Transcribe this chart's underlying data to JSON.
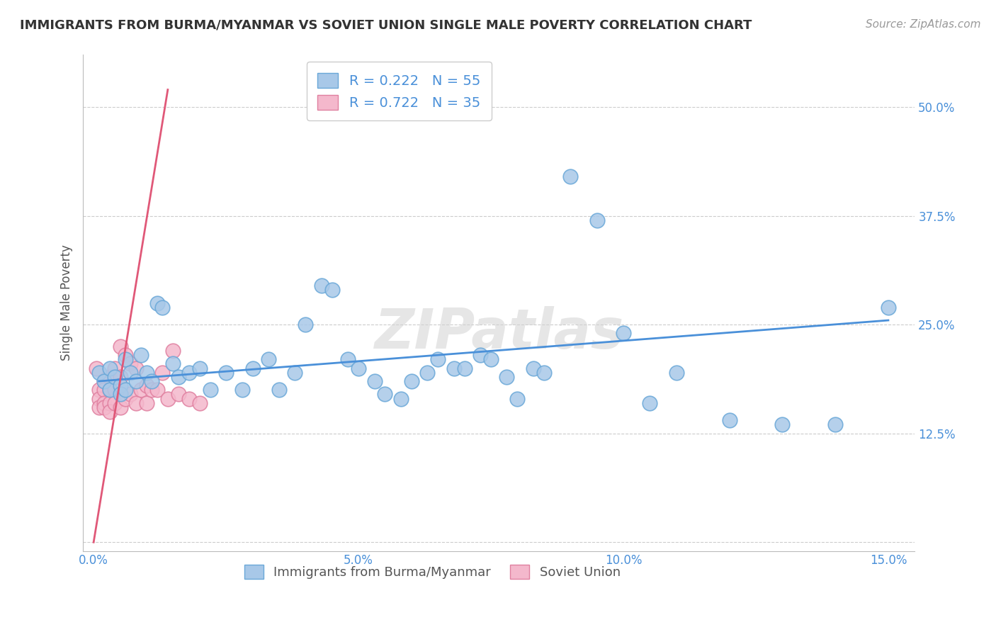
{
  "title": "IMMIGRANTS FROM BURMA/MYANMAR VS SOVIET UNION SINGLE MALE POVERTY CORRELATION CHART",
  "source": "Source: ZipAtlas.com",
  "ylabel": "Single Male Poverty",
  "xlim": [
    -0.002,
    0.155
  ],
  "ylim": [
    -0.01,
    0.56
  ],
  "xticks": [
    0.0,
    0.05,
    0.1,
    0.15
  ],
  "xtick_labels": [
    "0.0%",
    "5.0%",
    "10.0%",
    "15.0%"
  ],
  "yticks": [
    0.0,
    0.125,
    0.25,
    0.375,
    0.5
  ],
  "ytick_labels": [
    "",
    "12.5%",
    "25.0%",
    "37.5%",
    "50.0%"
  ],
  "legend1_label": "R = 0.222   N = 55",
  "legend2_label": "R = 0.722   N = 35",
  "dot1_color": "#a8c8e8",
  "dot2_color": "#f4b8cc",
  "dot1_edge": "#6aa8d8",
  "dot2_edge": "#e080a0",
  "line1_color": "#4a90d9",
  "line2_color": "#e05878",
  "watermark": "ZIPatlas",
  "background": "#ffffff",
  "grid_color": "#cccccc",
  "title_color": "#333333",
  "axis_label_color": "#555555",
  "tick_color": "#4a90d9",
  "R1": 0.222,
  "N1": 55,
  "R2": 0.722,
  "N2": 35,
  "burma_x": [
    0.001,
    0.002,
    0.003,
    0.003,
    0.004,
    0.005,
    0.005,
    0.006,
    0.006,
    0.007,
    0.008,
    0.009,
    0.01,
    0.011,
    0.012,
    0.013,
    0.015,
    0.016,
    0.018,
    0.02,
    0.022,
    0.025,
    0.028,
    0.03,
    0.033,
    0.035,
    0.038,
    0.04,
    0.043,
    0.045,
    0.048,
    0.05,
    0.053,
    0.055,
    0.058,
    0.06,
    0.063,
    0.065,
    0.068,
    0.07,
    0.073,
    0.075,
    0.078,
    0.08,
    0.083,
    0.085,
    0.09,
    0.095,
    0.1,
    0.105,
    0.11,
    0.12,
    0.13,
    0.14,
    0.15
  ],
  "burma_y": [
    0.195,
    0.185,
    0.2,
    0.175,
    0.19,
    0.18,
    0.17,
    0.21,
    0.175,
    0.195,
    0.185,
    0.215,
    0.195,
    0.185,
    0.275,
    0.27,
    0.205,
    0.19,
    0.195,
    0.2,
    0.175,
    0.195,
    0.175,
    0.2,
    0.21,
    0.175,
    0.195,
    0.25,
    0.295,
    0.29,
    0.21,
    0.2,
    0.185,
    0.17,
    0.165,
    0.185,
    0.195,
    0.21,
    0.2,
    0.2,
    0.215,
    0.21,
    0.19,
    0.165,
    0.2,
    0.195,
    0.42,
    0.37,
    0.24,
    0.16,
    0.195,
    0.14,
    0.135,
    0.135,
    0.27
  ],
  "soviet_x": [
    0.0005,
    0.001,
    0.001,
    0.001,
    0.002,
    0.002,
    0.002,
    0.002,
    0.003,
    0.003,
    0.003,
    0.003,
    0.004,
    0.004,
    0.004,
    0.005,
    0.005,
    0.005,
    0.006,
    0.006,
    0.007,
    0.007,
    0.008,
    0.008,
    0.009,
    0.01,
    0.01,
    0.011,
    0.012,
    0.013,
    0.014,
    0.015,
    0.016,
    0.018,
    0.02
  ],
  "soviet_y": [
    0.2,
    0.175,
    0.165,
    0.155,
    0.185,
    0.175,
    0.16,
    0.155,
    0.19,
    0.175,
    0.16,
    0.15,
    0.2,
    0.175,
    0.16,
    0.225,
    0.19,
    0.155,
    0.215,
    0.165,
    0.205,
    0.17,
    0.2,
    0.16,
    0.175,
    0.18,
    0.16,
    0.175,
    0.175,
    0.195,
    0.165,
    0.22,
    0.17,
    0.165,
    0.16
  ],
  "line1_x0": 0.001,
  "line1_y0": 0.185,
  "line1_x1": 0.15,
  "line1_y1": 0.255,
  "line2_x0": 0.0,
  "line2_y0": 0.0,
  "line2_x1": 0.014,
  "line2_y1": 0.52,
  "bottom_label1": "Immigrants from Burma/Myanmar",
  "bottom_label2": "Soviet Union"
}
